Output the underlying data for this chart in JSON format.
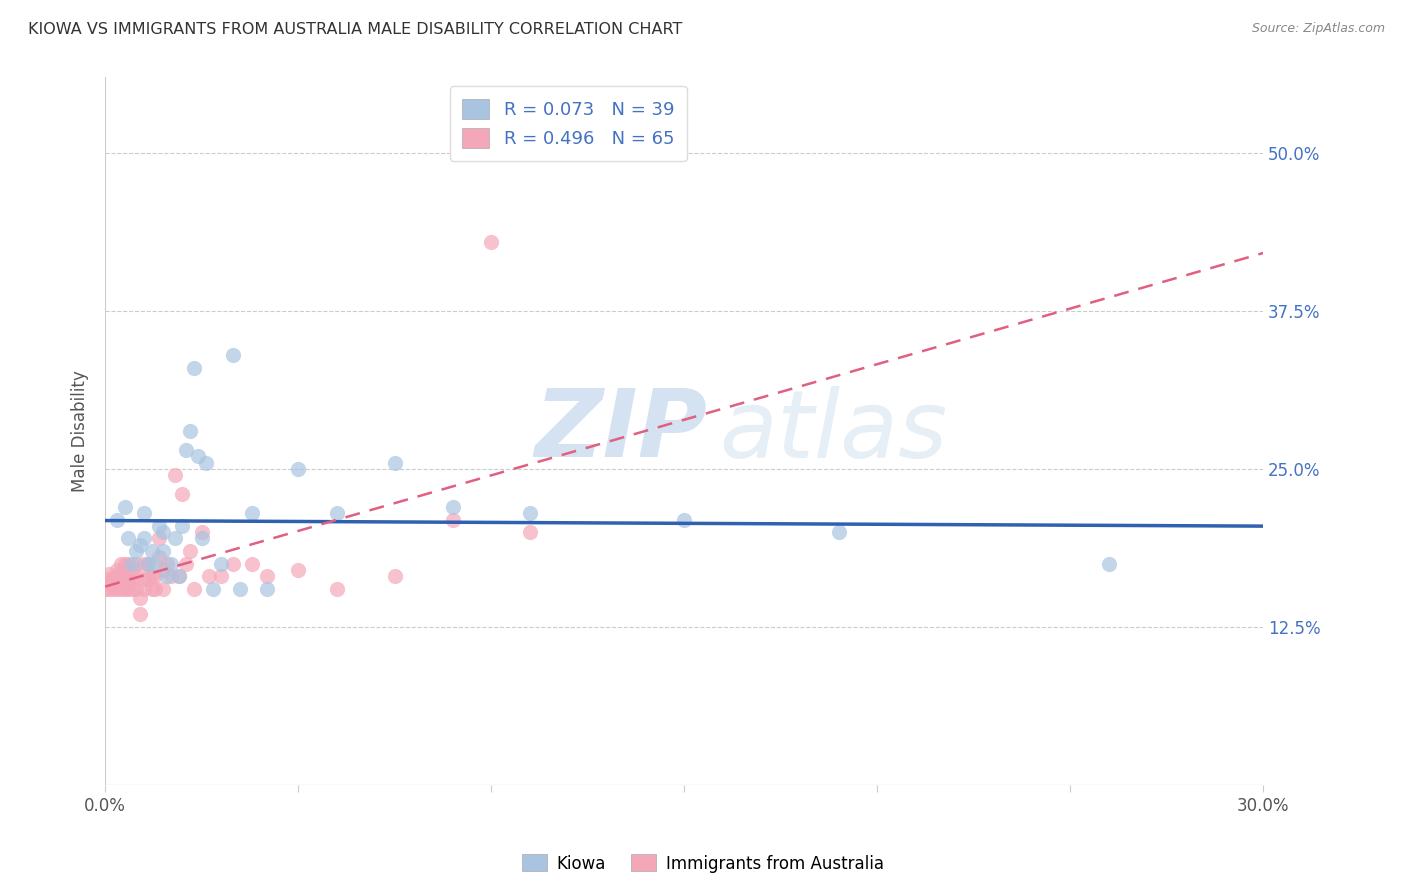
{
  "title": "KIOWA VS IMMIGRANTS FROM AUSTRALIA MALE DISABILITY CORRELATION CHART",
  "source": "Source: ZipAtlas.com",
  "ylabel": "Male Disability",
  "xlim": [
    0.0,
    0.3
  ],
  "ylim": [
    0.0,
    0.56
  ],
  "xtick_labels": [
    "0.0%",
    "",
    "",
    "",
    "",
    "",
    "30.0%"
  ],
  "xtick_values": [
    0.0,
    0.05,
    0.1,
    0.15,
    0.2,
    0.25,
    0.3
  ],
  "ytick_labels": [
    "12.5%",
    "25.0%",
    "37.5%",
    "50.0%"
  ],
  "ytick_values": [
    0.125,
    0.25,
    0.375,
    0.5
  ],
  "kiowa_color": "#a8c4e0",
  "immigrants_color": "#f4a7b9",
  "kiowa_line_color": "#3060b0",
  "immigrants_line_color": "#e06080",
  "kiowa_R": 0.073,
  "kiowa_N": 39,
  "immigrants_R": 0.496,
  "immigrants_N": 65,
  "legend_label_kiowa": "Kiowa",
  "legend_label_immigrants": "Immigrants from Australia",
  "watermark_zip": "ZIP",
  "watermark_atlas": "atlas",
  "kiowa_scatter_x": [
    0.003,
    0.005,
    0.006,
    0.007,
    0.008,
    0.009,
    0.01,
    0.01,
    0.011,
    0.012,
    0.013,
    0.014,
    0.015,
    0.015,
    0.016,
    0.017,
    0.018,
    0.019,
    0.02,
    0.021,
    0.022,
    0.023,
    0.024,
    0.025,
    0.026,
    0.028,
    0.03,
    0.033,
    0.035,
    0.038,
    0.042,
    0.05,
    0.06,
    0.075,
    0.09,
    0.11,
    0.15,
    0.19,
    0.26
  ],
  "kiowa_scatter_y": [
    0.21,
    0.22,
    0.195,
    0.175,
    0.185,
    0.19,
    0.195,
    0.215,
    0.175,
    0.185,
    0.175,
    0.205,
    0.185,
    0.2,
    0.165,
    0.175,
    0.195,
    0.165,
    0.205,
    0.265,
    0.28,
    0.33,
    0.26,
    0.195,
    0.255,
    0.155,
    0.175,
    0.34,
    0.155,
    0.215,
    0.155,
    0.25,
    0.215,
    0.255,
    0.22,
    0.215,
    0.21,
    0.2,
    0.175
  ],
  "immigrants_scatter_x": [
    0.0,
    0.0,
    0.001,
    0.001,
    0.001,
    0.001,
    0.002,
    0.002,
    0.002,
    0.003,
    0.003,
    0.003,
    0.003,
    0.004,
    0.004,
    0.004,
    0.004,
    0.005,
    0.005,
    0.005,
    0.005,
    0.006,
    0.006,
    0.006,
    0.007,
    0.007,
    0.007,
    0.008,
    0.008,
    0.008,
    0.009,
    0.009,
    0.01,
    0.01,
    0.01,
    0.011,
    0.011,
    0.012,
    0.012,
    0.013,
    0.013,
    0.014,
    0.014,
    0.015,
    0.015,
    0.016,
    0.017,
    0.018,
    0.019,
    0.02,
    0.021,
    0.022,
    0.023,
    0.025,
    0.027,
    0.03,
    0.033,
    0.038,
    0.042,
    0.05,
    0.06,
    0.075,
    0.09,
    0.1,
    0.11
  ],
  "immigrants_scatter_y": [
    0.155,
    0.16,
    0.155,
    0.16,
    0.163,
    0.167,
    0.155,
    0.158,
    0.163,
    0.155,
    0.16,
    0.165,
    0.17,
    0.155,
    0.162,
    0.168,
    0.175,
    0.155,
    0.16,
    0.165,
    0.175,
    0.155,
    0.163,
    0.175,
    0.155,
    0.162,
    0.17,
    0.155,
    0.165,
    0.175,
    0.135,
    0.148,
    0.155,
    0.163,
    0.175,
    0.163,
    0.175,
    0.155,
    0.165,
    0.155,
    0.165,
    0.18,
    0.195,
    0.155,
    0.17,
    0.175,
    0.165,
    0.245,
    0.165,
    0.23,
    0.175,
    0.185,
    0.155,
    0.2,
    0.165,
    0.165,
    0.175,
    0.175,
    0.165,
    0.17,
    0.155,
    0.165,
    0.21,
    0.43,
    0.2
  ]
}
